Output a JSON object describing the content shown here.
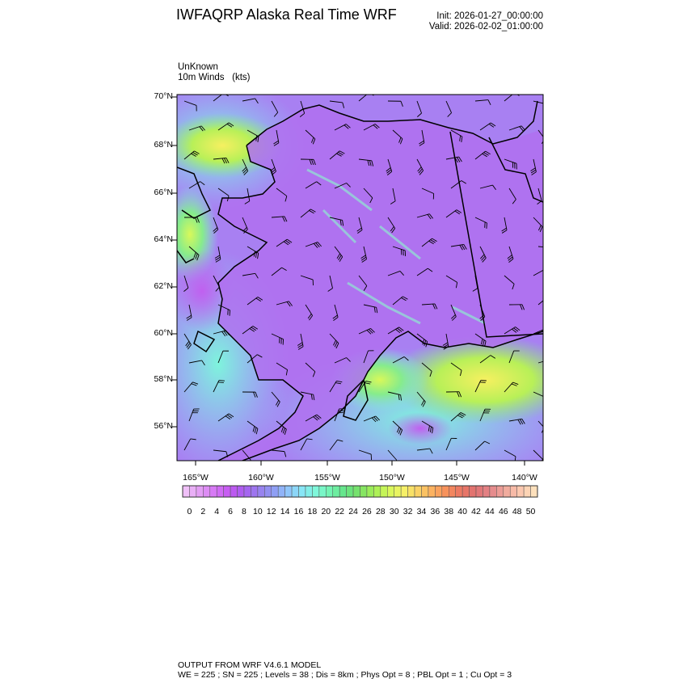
{
  "header": {
    "title": "IWFAQRP Alaska Real Time WRF",
    "init": "Init: 2026-01-27_00:00:00",
    "valid": "Valid: 2026-02-02_01:00:00"
  },
  "field": {
    "name": "UnKnown",
    "description": "10m Winds",
    "units": "(kts)"
  },
  "map": {
    "region": "Alaska",
    "lat_labels": [
      "70°N",
      "68°N",
      "66°N",
      "64°N",
      "62°N",
      "60°N",
      "58°N",
      "56°N"
    ],
    "lon_labels": [
      "165°W",
      "160°W",
      "155°W",
      "150°W",
      "145°W",
      "140°W"
    ],
    "overlays": [
      "coastlines",
      "political-boundaries",
      "wind-barbs"
    ]
  },
  "colorbar": {
    "labels": [
      "0",
      "2",
      "4",
      "6",
      "8",
      "10",
      "12",
      "14",
      "16",
      "18",
      "20",
      "22",
      "24",
      "26",
      "28",
      "30",
      "32",
      "34",
      "36",
      "38",
      "40",
      "42",
      "44",
      "46",
      "48",
      "50"
    ],
    "anchor_colors": [
      "#f0c0f8",
      "#e29cf4",
      "#d676f5",
      "#c458f1",
      "#a85ff0",
      "#9a7eee",
      "#8f9af3",
      "#90c4fb",
      "#88e6f6",
      "#7ef8d8",
      "#72f2ae",
      "#64e486",
      "#7ce266",
      "#a6f055",
      "#d6f85a",
      "#f6f268",
      "#fad266",
      "#fcb060",
      "#f68e5c",
      "#ea7664",
      "#e07272",
      "#e4868a",
      "#f0a89c",
      "#fcc6ae",
      "#fde0bc"
    ]
  },
  "footer": {
    "line1": "OUTPUT FROM WRF V4.6.1 MODEL",
    "line2": "WE = 225 ; SN = 225 ; Levels = 38 ; Dis = 8km ; Phys Opt = 8 ; PBL Opt = 1 ; Cu Opt = 3"
  }
}
